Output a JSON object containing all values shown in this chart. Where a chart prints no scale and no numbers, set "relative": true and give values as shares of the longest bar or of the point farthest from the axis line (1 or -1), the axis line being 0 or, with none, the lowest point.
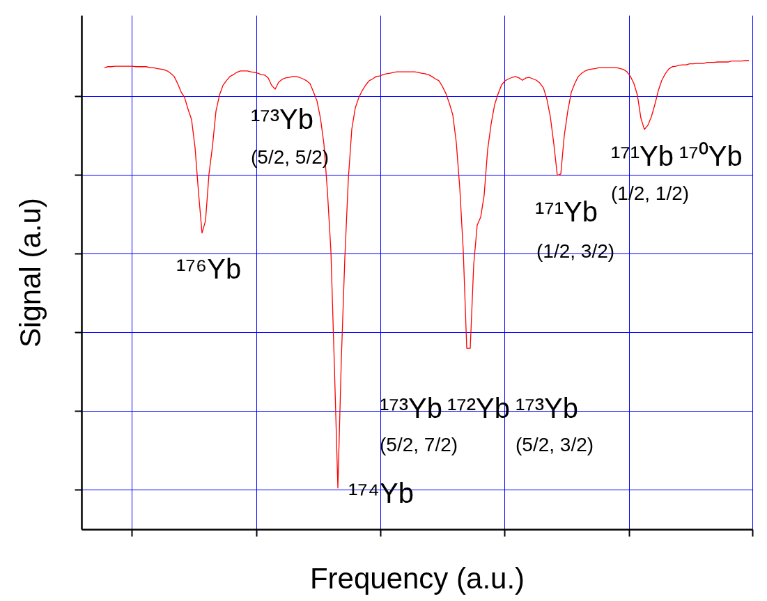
{
  "chart_data": {
    "type": "line",
    "relative": true,
    "xlabel": "Frequency (a.u.)",
    "ylabel": "Signal (a.u)",
    "grid": true,
    "categories": [
      null,
      null,
      null,
      null,
      null,
      null,
      null,
      null,
      null,
      null,
      null,
      null,
      null,
      null,
      null,
      null,
      null,
      null,
      null,
      null,
      null,
      null,
      null,
      null,
      null,
      null,
      null,
      null,
      null,
      null,
      null,
      null,
      null,
      null,
      null,
      null,
      null,
      null,
      null,
      null,
      null,
      null,
      null,
      null,
      null,
      null,
      null,
      null,
      null,
      null,
      null,
      null,
      null,
      null,
      null,
      null,
      null,
      null,
      null,
      null,
      null,
      null,
      null,
      null,
      null,
      null,
      null,
      null,
      null,
      null,
      null,
      null,
      null,
      null,
      null,
      null,
      null,
      null,
      null,
      null,
      null,
      null,
      null,
      null,
      null,
      null,
      null,
      null,
      null,
      null,
      null,
      null,
      null,
      null,
      null,
      null,
      null,
      null,
      null,
      null,
      null,
      null,
      null,
      null,
      null,
      null,
      null,
      null,
      null,
      null,
      null,
      null,
      null,
      null,
      null,
      null,
      null,
      null,
      null,
      null,
      null,
      null,
      null,
      null,
      null,
      null,
      null,
      null,
      null,
      null,
      null,
      null,
      null,
      null,
      null,
      null,
      null,
      null,
      null,
      null,
      null,
      null,
      null,
      null,
      null,
      null,
      null,
      null,
      null,
      null,
      null,
      null,
      null,
      null,
      null,
      null,
      null,
      null,
      null,
      null,
      null,
      null,
      null,
      null,
      null,
      null,
      null,
      null,
      null,
      null,
      null,
      null,
      null,
      null,
      null,
      null,
      null,
      null,
      null,
      null,
      null,
      null,
      null,
      null,
      null,
      null
    ],
    "series": [
      {
        "color": "#ff0000",
        "values": [
          0.985,
          0.987,
          0.987,
          0.988,
          0.988,
          0.988,
          0.988,
          0.988,
          0.988,
          0.987,
          0.987,
          0.987,
          0.987,
          0.985,
          0.985,
          0.983,
          0.982,
          0.981,
          0.978,
          0.973,
          0.966,
          0.951,
          0.933,
          0.921,
          0.896,
          0.874,
          0.814,
          0.718,
          0.632,
          0.658,
          0.758,
          0.817,
          0.892,
          0.926,
          0.947,
          0.957,
          0.966,
          0.97,
          0.975,
          0.978,
          0.978,
          0.978,
          0.976,
          0.975,
          0.973,
          0.97,
          0.969,
          0.963,
          0.947,
          0.939,
          0.954,
          0.96,
          0.963,
          0.964,
          0.966,
          0.966,
          0.964,
          0.961,
          0.957,
          0.951,
          0.933,
          0.914,
          0.877,
          0.822,
          0.721,
          0.594,
          0.348,
          0.088,
          0.364,
          0.579,
          0.747,
          0.854,
          0.899,
          0.921,
          0.936,
          0.948,
          0.957,
          0.961,
          0.966,
          0.967,
          0.97,
          0.972,
          0.973,
          0.975,
          0.976,
          0.976,
          0.976,
          0.976,
          0.976,
          0.976,
          0.975,
          0.973,
          0.972,
          0.97,
          0.966,
          0.961,
          0.957,
          0.945,
          0.93,
          0.909,
          0.884,
          0.825,
          0.728,
          0.594,
          0.386,
          0.386,
          0.565,
          0.649,
          0.666,
          0.713,
          0.81,
          0.865,
          0.906,
          0.929,
          0.948,
          0.957,
          0.961,
          0.964,
          0.966,
          0.963,
          0.958,
          0.963,
          0.964,
          0.961,
          0.958,
          0.952,
          0.942,
          0.918,
          0.88,
          0.822,
          0.755,
          0.758,
          0.84,
          0.892,
          0.932,
          0.951,
          0.966,
          0.973,
          0.978,
          0.981,
          0.982,
          0.983,
          0.985,
          0.985,
          0.985,
          0.985,
          0.985,
          0.985,
          0.983,
          0.981,
          0.976,
          0.966,
          0.951,
          0.926,
          0.877,
          0.853,
          0.862,
          0.88,
          0.906,
          0.936,
          0.958,
          0.972,
          0.982,
          0.987,
          0.988,
          0.99,
          0.991,
          0.991,
          0.993,
          0.993,
          0.994,
          0.994,
          0.994,
          0.996,
          0.996,
          0.996,
          0.997,
          0.997,
          0.997,
          0.997,
          0.999,
          0.999,
          0.999,
          0.999,
          1,
          1
        ]
      }
    ],
    "annotations": [
      "¹⁷³Yb",
      "(5/2, 5/2)",
      "¹⁷⁶Yb",
      "¹⁷⁴Yb",
      "¹⁷³Yb",
      "(5/2, 7/2)",
      "¹⁷²Yb",
      "¹⁷³Yb",
      "(5/2, 3/2)",
      "¹⁷¹Yb",
      "(1/2, 3/2)",
      "¹⁷¹Yb",
      "(1/2, 1/2)",
      "¹⁷⁰Yb"
    ]
  }
}
